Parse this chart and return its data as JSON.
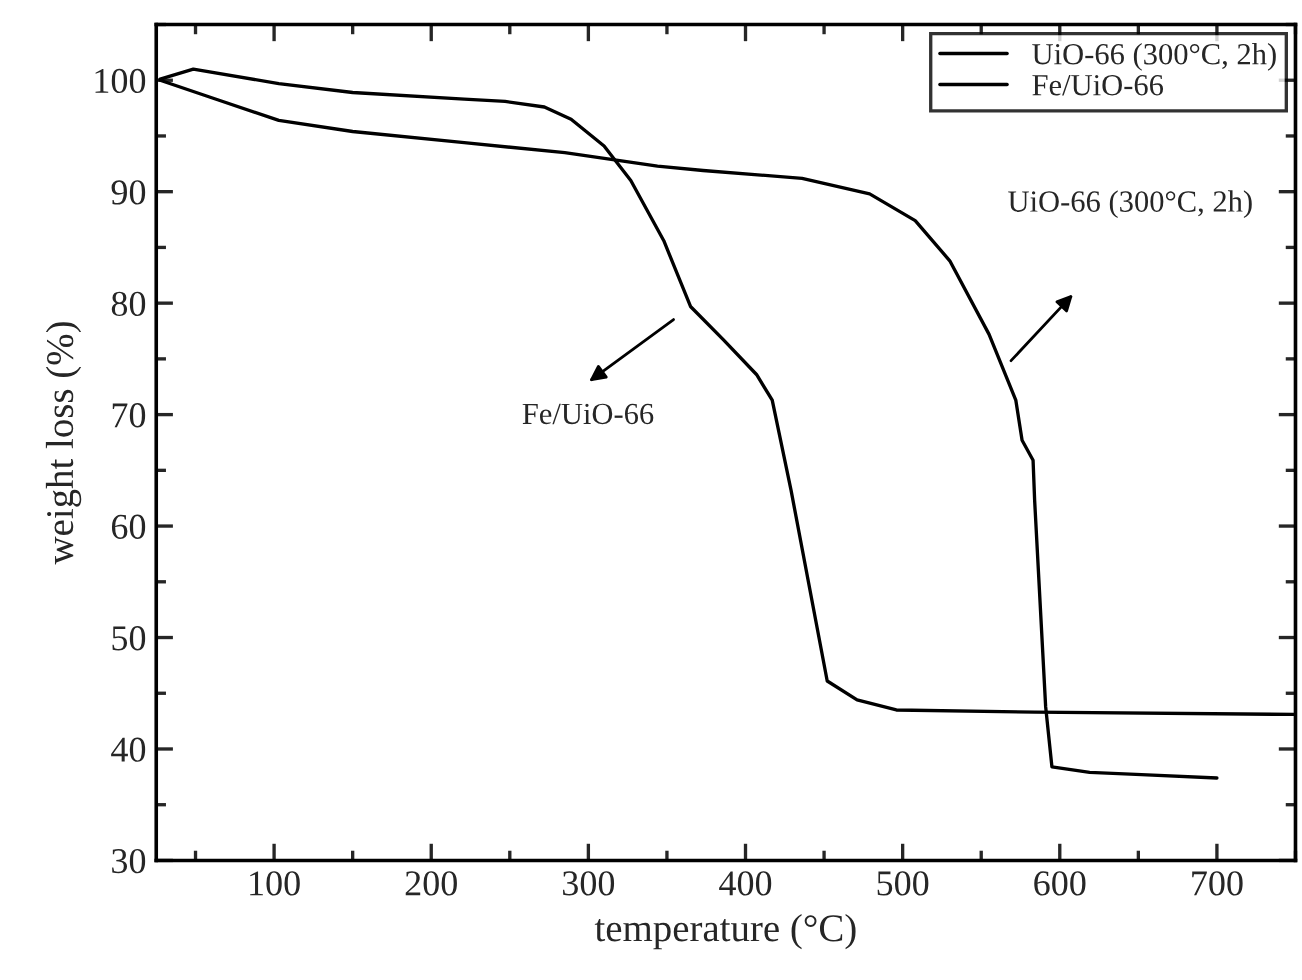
{
  "chart_data": {
    "type": "line",
    "xlabel": "temperature (°C)",
    "ylabel": "weight loss (%)",
    "xlim": [
      25,
      750
    ],
    "xticks": [
      100,
      200,
      300,
      400,
      500,
      600,
      700
    ],
    "ylim": [
      30,
      105
    ],
    "yticks": [
      30,
      40,
      50,
      60,
      70,
      80,
      90,
      100
    ],
    "grid": false,
    "legend": "top right",
    "marker": "none",
    "line_style": "solid",
    "series": [
      {
        "name": "UiO-66 (300°C, 2h)",
        "color": "#000000",
        "x": [
          27.5,
          65,
          103,
          150,
          221,
          285,
          344,
          373,
          436,
          479,
          508,
          530,
          555,
          572,
          576,
          583,
          584,
          591,
          595,
          619,
          652,
          700
        ],
        "values": [
          100,
          98.2,
          96.4,
          95.4,
          94.4,
          93.5,
          92.3,
          91.9,
          91.2,
          89.8,
          87.4,
          83.8,
          77.2,
          71.3,
          67.7,
          65.9,
          62.3,
          43.8,
          38.4,
          37.9,
          37.7,
          37.4
        ]
      },
      {
        "name": "Fe/UiO-66",
        "color": "#000000",
        "x": [
          27.5,
          48.6,
          103,
          150,
          221,
          247,
          272,
          289,
          310,
          327,
          348,
          365,
          386,
          407,
          417,
          429,
          452,
          471,
          496,
          584,
          749
        ],
        "values": [
          100.1,
          101.0,
          99.7,
          98.9,
          98.3,
          98.1,
          97.6,
          96.5,
          94.1,
          91.0,
          85.6,
          79.7,
          76.7,
          73.6,
          71.3,
          63.2,
          46.1,
          44.4,
          43.5,
          43.3,
          43.1
        ]
      }
    ],
    "annotations": [
      "Fe/UiO-66",
      "UiO-66 (300°C, 2h)"
    ]
  }
}
